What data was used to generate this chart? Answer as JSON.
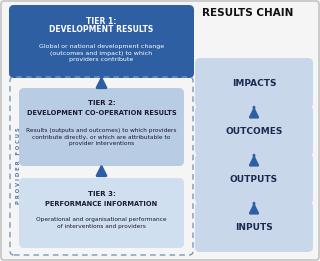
{
  "title": "RESULTS CHAIN",
  "background_color": "#f5f5f5",
  "border_color": "#bbbbbb",
  "tier1": {
    "line1": "TIER 1:",
    "line2": "DEVELOPMENT RESULTS",
    "body": "Global or national development change\n(outcomes and impact) to which\nproviders contribute",
    "bg_color": "#2e5fa3",
    "text_color": "#ffffff"
  },
  "tier2": {
    "line1": "TIER 2:",
    "line2": "DEVELOPMENT CO-OPERATION RESULTS",
    "body": "Results (outputs and outcomes) to which providers\ncontribute directly, or which are attributable to\nprovider interventions",
    "bg_color": "#b8cce4",
    "text_color": "#1a1a2e"
  },
  "tier3": {
    "line1": "TIER 3:",
    "line2": "PERFORMANCE INFORMATION",
    "body": "Operational and organisational performance\nof interventions and providers",
    "bg_color": "#d0dff0",
    "text_color": "#1a1a2e"
  },
  "provider_focus_color": "#5577aa",
  "dashed_border_color": "#7799bb",
  "chain_boxes": [
    "IMPACTS",
    "OUTCOMES",
    "OUTPUTS",
    "INPUTS"
  ],
  "chain_box_color": "#c8d8ea",
  "chain_box_text_color": "#1a2a50",
  "arrow_color": "#2e5fa3",
  "title_color": "#111111"
}
